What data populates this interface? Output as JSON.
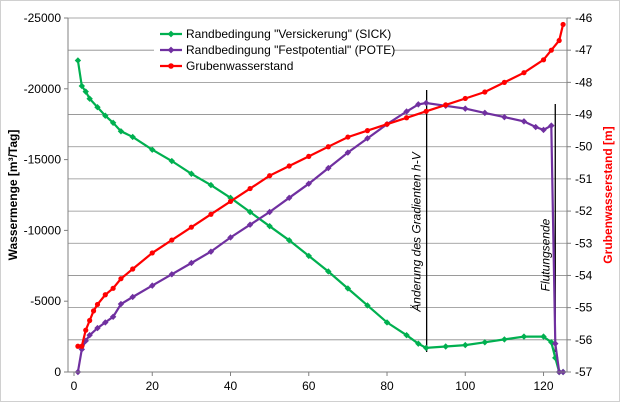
{
  "chart_data": {
    "type": "line",
    "title": "",
    "xlabel": "",
    "ylabel": "Wassermenge [m³/Tag]",
    "y2label": "Grubenwasserstand [m]",
    "xlim": [
      0,
      126
    ],
    "ylim": [
      0,
      -25000
    ],
    "y2lim": [
      -57,
      -46
    ],
    "xticks": [
      0,
      20,
      40,
      60,
      80,
      100,
      120
    ],
    "yticks": [
      0,
      -5000,
      -10000,
      -15000,
      -20000,
      -25000
    ],
    "y2ticks": [
      -57,
      -56,
      -55,
      -54,
      -53,
      -52,
      -51,
      -50,
      -49,
      -48,
      -47,
      -46
    ],
    "grid": "horizontal",
    "legend_position": "top-center",
    "series": [
      {
        "name": "Randbedingung \"Versickerung\" (SICK)",
        "axis": "left",
        "color": "#00b050",
        "marker": "diamond",
        "x": [
          1,
          2,
          3,
          4,
          6,
          8,
          10,
          12,
          15,
          20,
          25,
          30,
          35,
          40,
          45,
          50,
          55,
          60,
          65,
          70,
          75,
          80,
          85,
          88,
          90,
          95,
          100,
          105,
          110,
          115,
          120,
          122,
          123,
          124,
          125
        ],
        "values": [
          -22000,
          -20200,
          -19800,
          -19300,
          -18700,
          -18100,
          -17600,
          -17000,
          -16600,
          -15700,
          -14900,
          -14000,
          -13200,
          -12300,
          -11300,
          -10300,
          -9300,
          -8200,
          -7100,
          -5900,
          -4700,
          -3500,
          -2600,
          -2000,
          -1700,
          -1800,
          -1900,
          -2100,
          -2300,
          -2500,
          -2500,
          -2100,
          -1000,
          0,
          0
        ]
      },
      {
        "name": "Randbedingung \"Festpotential\" (POTE)",
        "axis": "left",
        "color": "#7030a0",
        "marker": "diamond",
        "x": [
          1,
          2,
          3,
          4,
          6,
          8,
          10,
          12,
          15,
          20,
          25,
          30,
          35,
          40,
          45,
          50,
          55,
          60,
          65,
          70,
          75,
          80,
          85,
          88,
          90,
          95,
          100,
          105,
          110,
          115,
          118,
          120,
          122,
          123,
          124,
          125
        ],
        "values": [
          0,
          -1600,
          -2200,
          -2600,
          -3100,
          -3500,
          -3900,
          -4800,
          -5300,
          -6100,
          -6900,
          -7700,
          -8500,
          -9500,
          -10400,
          -11300,
          -12300,
          -13300,
          -14400,
          -15500,
          -16500,
          -17500,
          -18400,
          -18900,
          -19000,
          -18800,
          -18600,
          -18300,
          -18000,
          -17700,
          -17300,
          -17100,
          -17400,
          -2000,
          0,
          0
        ]
      },
      {
        "name": "Grubenwasserstand",
        "axis": "right",
        "color": "#ff0000",
        "marker": "circle",
        "x": [
          1,
          2,
          3,
          4,
          5,
          6,
          8,
          10,
          12,
          15,
          20,
          25,
          30,
          35,
          40,
          45,
          50,
          55,
          60,
          65,
          70,
          75,
          80,
          85,
          90,
          95,
          100,
          105,
          110,
          115,
          120,
          122,
          124,
          125
        ],
        "values": [
          -56.2,
          -56.2,
          -55.7,
          -55.4,
          -55.1,
          -54.9,
          -54.6,
          -54.4,
          -54.1,
          -53.8,
          -53.3,
          -52.9,
          -52.5,
          -52.1,
          -51.7,
          -51.3,
          -50.9,
          -50.6,
          -50.3,
          -50.0,
          -49.7,
          -49.5,
          -49.3,
          -49.1,
          -48.9,
          -48.7,
          -48.5,
          -48.3,
          -48.0,
          -47.7,
          -47.3,
          -47.0,
          -46.7,
          -46.2
        ]
      }
    ],
    "annotations": [
      {
        "text": "Änderung des Gradienten h-V",
        "x": 90
      },
      {
        "text": "Flutungsende",
        "x": 123
      }
    ]
  }
}
